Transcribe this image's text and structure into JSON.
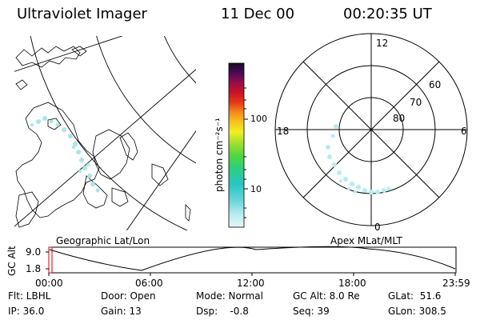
{
  "header": {
    "title": "Ultraviolet Imager",
    "date": "11 Dec 00",
    "time": "00:20:35 UT"
  },
  "left_panel": {
    "caption": "Geographic Lat/Lon"
  },
  "right_panel": {
    "caption": "Apex MLat/MLT",
    "mlt_labels": {
      "top": "12",
      "bottom": "0",
      "left": "18",
      "right": "6"
    },
    "mlat_labels": [
      "60",
      "70",
      "80"
    ]
  },
  "colorbar": {
    "unit_label": "photon cm⁻²s⁻¹",
    "tick_labels": [
      "100",
      "10"
    ]
  },
  "altitude_strip": {
    "label": "GC Alt",
    "y_ticks": [
      "9.0",
      "1.8"
    ],
    "x_ticks": [
      "00:00",
      "06:00",
      "12:00",
      "18:00",
      "23:59"
    ]
  },
  "info": {
    "flt": "Flt: LBHL",
    "ip": "IP: 36.0",
    "door": "Door: Open",
    "gain": "Gain: 13",
    "mode": "Mode: Normal",
    "dsp": "Dsp:    -0.8",
    "gcalt": "GC Alt: 8.0 Re",
    "seq": "Seq: 39",
    "glat": "GLat:  51.6",
    "glon": "GLon: 308.5"
  }
}
